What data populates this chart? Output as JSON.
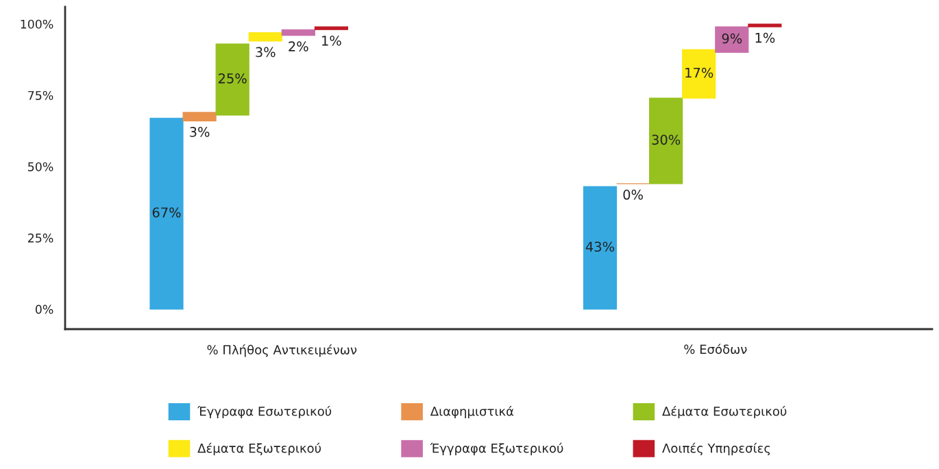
{
  "chart_data": {
    "type": "bar",
    "categories": [
      "% Πλήθος Αντικειμένων",
      "% Εσόδων"
    ],
    "series": [
      {
        "name": "Έγγραφα Εσωτερικού",
        "color": "#36a9e1",
        "values": [
          67,
          43
        ],
        "base": [
          0,
          0
        ],
        "value_labels": [
          "67%",
          "43%"
        ]
      },
      {
        "name": "Διαφημιστικά",
        "color": "#e8924e",
        "values": [
          3,
          0
        ],
        "base": [
          66,
          44
        ],
        "value_labels": [
          "3%",
          "0%"
        ]
      },
      {
        "name": "Δέματα Εσωτερικού",
        "color": "#96c11f",
        "values": [
          25,
          30
        ],
        "base": [
          68,
          44
        ],
        "value_labels": [
          "25%",
          "30%"
        ]
      },
      {
        "name": "Δέματα Εξωτερικού",
        "color": "#fde914",
        "values": [
          3,
          17
        ],
        "base": [
          94,
          74
        ],
        "value_labels": [
          "3%",
          "17%"
        ]
      },
      {
        "name": "Έγγραφα Εξωτερικού",
        "color": "#c86fa9",
        "values": [
          2,
          9
        ],
        "base": [
          96,
          90
        ],
        "value_labels": [
          "2%",
          "9%"
        ]
      },
      {
        "name": "Λοιπές Υπηρεσίες",
        "color": "#c01a26",
        "values": [
          1,
          1
        ],
        "base": [
          98,
          99
        ],
        "value_labels": [
          "1%",
          "1%"
        ]
      }
    ],
    "ylim": [
      -7,
      106
    ],
    "yticks": [
      {
        "value": 0,
        "label": "0%"
      },
      {
        "value": 25,
        "label": "25%"
      },
      {
        "value": 50,
        "label": "50%"
      },
      {
        "value": 75,
        "label": "75%"
      },
      {
        "value": 100,
        "label": "100%"
      }
    ],
    "legend": "bottom"
  }
}
